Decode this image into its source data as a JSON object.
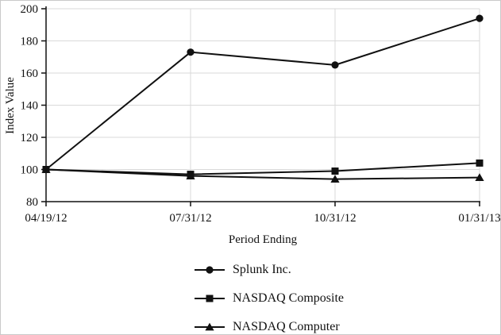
{
  "figure": {
    "background": "#ffffff",
    "border_color": "#c9c9c9"
  },
  "chart_data": {
    "type": "line",
    "title": "",
    "xlabel": "Period Ending",
    "ylabel": "Index Value",
    "categories": [
      "04/19/12",
      "07/31/12",
      "10/31/12",
      "01/31/13"
    ],
    "ylim": [
      80,
      200
    ],
    "yticks": [
      80,
      100,
      120,
      140,
      160,
      180,
      200
    ],
    "grid": "horizontal major gridlines at 100-200 and vertical gridlines at each period except the first; light gray",
    "legend_position": "below chart, left-aligned column",
    "series": [
      {
        "name": "Splunk Inc.",
        "marker": "circle",
        "color": "#111111",
        "values": [
          100,
          173,
          165,
          194
        ]
      },
      {
        "name": "NASDAQ Composite",
        "marker": "square",
        "color": "#111111",
        "values": [
          100,
          97,
          99,
          104
        ]
      },
      {
        "name": "NASDAQ Computer",
        "marker": "triangle",
        "color": "#111111",
        "values": [
          100,
          96,
          94,
          95
        ]
      }
    ],
    "colors": {
      "line": "#111111",
      "axis": "#111111",
      "grid": "#d9d9d9",
      "text": "#111111"
    }
  }
}
